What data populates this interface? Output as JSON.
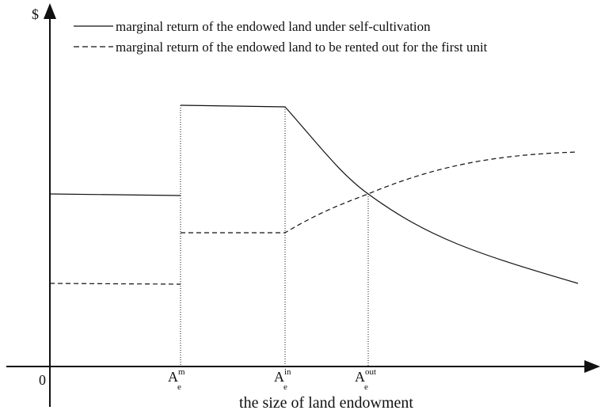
{
  "y_axis_label": "$",
  "origin_label": "0",
  "x_axis_label": "the size of land endowment",
  "legend": [
    {
      "style": "solid",
      "label": "marginal return of the endowed land under self-cultivation"
    },
    {
      "style": "dashed",
      "label": "marginal return of the endowed land to be rented out for the first unit"
    }
  ],
  "x_markers": [
    {
      "symbol": "A",
      "subscript": "e",
      "superscript": "m"
    },
    {
      "symbol": "A",
      "subscript": "e",
      "superscript": "in"
    },
    {
      "symbol": "A",
      "subscript": "e",
      "superscript": "out"
    }
  ]
}
